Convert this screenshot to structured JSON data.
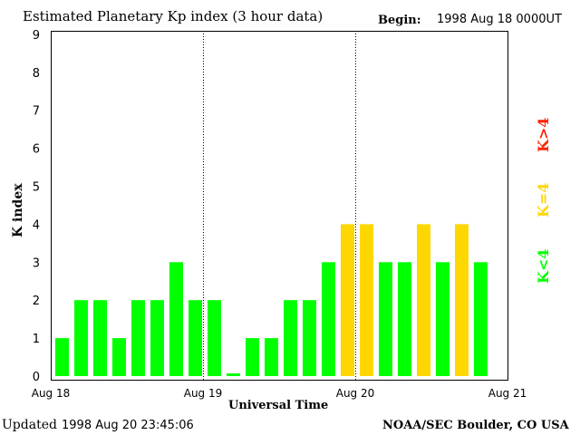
{
  "chart_data": {
    "type": "bar",
    "title": "Estimated Planetary Kp index (3 hour data)",
    "begin_label": "Begin:",
    "begin_value": "1998 Aug 18 0000UT",
    "xlabel": "Universal Time",
    "ylabel": "K index",
    "ylim": [
      0,
      9
    ],
    "yticks": [
      "0",
      "1",
      "2",
      "3",
      "4",
      "5",
      "6",
      "7",
      "8",
      "9"
    ],
    "xticks": [
      "Aug 18",
      "Aug 19",
      "Aug 20",
      "Aug 21"
    ],
    "values": [
      1,
      2,
      2,
      1,
      2,
      2,
      3,
      2,
      2,
      0,
      1,
      1,
      2,
      2,
      3,
      4,
      4,
      3,
      3,
      4,
      3,
      4,
      3
    ],
    "legend": [
      {
        "label": "K<4",
        "color": "#00ff00"
      },
      {
        "label": "K=4",
        "color": "#ffd700"
      },
      {
        "label": "K>4",
        "color": "#ff2000"
      }
    ]
  },
  "footer": {
    "updated_label": "Updated",
    "updated_value": "1998 Aug 20 23:45:06",
    "source": "NOAA/SEC Boulder, CO USA"
  }
}
